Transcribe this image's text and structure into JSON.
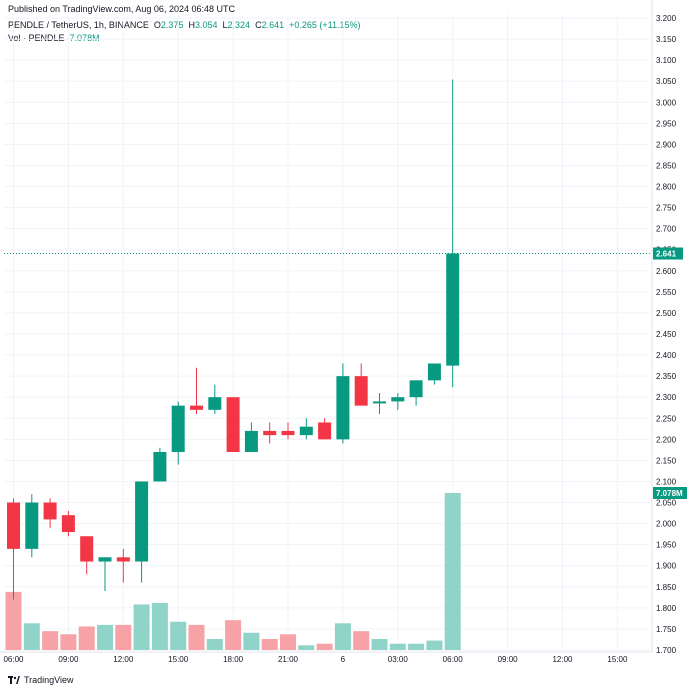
{
  "header": {
    "published": "Published on TradingView.com, Aug 06, 2024 06:48 UTC",
    "symbol": "PENDLE / TetherUS, 1h, BINANCE",
    "open_label": "O",
    "open": "2.375",
    "high_label": "H",
    "high": "3.054",
    "low_label": "L",
    "low": "2.324",
    "close_label": "C",
    "close": "2.641",
    "change": "+0.265 (+11.15%)",
    "vol_label": "Vol · PENDLE",
    "vol_value": "7.078M"
  },
  "footer": {
    "brand": "TradingView",
    "logo_icon": "tradingview-logo-icon"
  },
  "colors": {
    "up": "#089981",
    "down": "#f23645",
    "vol_up": "#8fd3c9",
    "vol_down": "#f6a2a6"
  },
  "chart_data": {
    "type": "candlestick",
    "ylim": [
      1.7,
      3.2
    ],
    "y_ticks": [
      "1.700",
      "1.750",
      "1.800",
      "1.850",
      "1.900",
      "1.950",
      "2.000",
      "2.050",
      "2.100",
      "2.150",
      "2.200",
      "2.250",
      "2.300",
      "2.350",
      "2.400",
      "2.450",
      "2.500",
      "2.550",
      "2.600",
      "2.650",
      "2.700",
      "2.750",
      "2.800",
      "2.850",
      "2.900",
      "2.950",
      "3.000",
      "3.050",
      "3.100",
      "3.150",
      "3.200"
    ],
    "x_ticks": [
      {
        "label": "06:00",
        "i": 0
      },
      {
        "label": "09:00",
        "i": 3
      },
      {
        "label": "12:00",
        "i": 6
      },
      {
        "label": "15:00",
        "i": 9
      },
      {
        "label": "18:00",
        "i": 12
      },
      {
        "label": "21:00",
        "i": 15
      },
      {
        "label": "6",
        "i": 18
      },
      {
        "label": "03:00",
        "i": 21
      },
      {
        "label": "06:00",
        "i": 24
      },
      {
        "label": "09:00",
        "i": 27
      },
      {
        "label": "12:00",
        "i": 30
      },
      {
        "label": "15:00",
        "i": 33
      }
    ],
    "last_price": "2.641",
    "last_volume": "7.078M",
    "candles": [
      {
        "o": 2.05,
        "h": 2.06,
        "l": 1.82,
        "c": 1.94,
        "v": 0.37
      },
      {
        "o": 1.94,
        "h": 2.07,
        "l": 1.92,
        "c": 2.05,
        "v": 0.17
      },
      {
        "o": 2.05,
        "h": 2.06,
        "l": 1.99,
        "c": 2.01,
        "v": 0.12
      },
      {
        "o": 2.02,
        "h": 2.03,
        "l": 1.97,
        "c": 1.98,
        "v": 0.1
      },
      {
        "o": 1.97,
        "h": 1.97,
        "l": 1.88,
        "c": 1.91,
        "v": 0.15
      },
      {
        "o": 1.91,
        "h": 1.92,
        "l": 1.84,
        "c": 1.92,
        "v": 0.16
      },
      {
        "o": 1.92,
        "h": 1.94,
        "l": 1.86,
        "c": 1.91,
        "v": 0.16
      },
      {
        "o": 1.91,
        "h": 2.1,
        "l": 1.86,
        "c": 2.1,
        "v": 0.29
      },
      {
        "o": 2.1,
        "h": 2.18,
        "l": 2.1,
        "c": 2.17,
        "v": 0.3
      },
      {
        "o": 2.17,
        "h": 2.29,
        "l": 2.14,
        "c": 2.28,
        "v": 0.18
      },
      {
        "o": 2.28,
        "h": 2.37,
        "l": 2.26,
        "c": 2.27,
        "v": 0.16
      },
      {
        "o": 2.27,
        "h": 2.33,
        "l": 2.26,
        "c": 2.3,
        "v": 0.07
      },
      {
        "o": 2.3,
        "h": 2.3,
        "l": 2.17,
        "c": 2.17,
        "v": 0.19
      },
      {
        "o": 2.17,
        "h": 2.24,
        "l": 2.17,
        "c": 2.22,
        "v": 0.11
      },
      {
        "o": 2.22,
        "h": 2.24,
        "l": 2.19,
        "c": 2.21,
        "v": 0.07
      },
      {
        "o": 2.22,
        "h": 2.24,
        "l": 2.2,
        "c": 2.21,
        "v": 0.1
      },
      {
        "o": 2.21,
        "h": 2.25,
        "l": 2.2,
        "c": 2.23,
        "v": 0.03
      },
      {
        "o": 2.24,
        "h": 2.25,
        "l": 2.2,
        "c": 2.2,
        "v": 0.04
      },
      {
        "o": 2.2,
        "h": 2.38,
        "l": 2.19,
        "c": 2.35,
        "v": 0.17
      },
      {
        "o": 2.35,
        "h": 2.38,
        "l": 2.28,
        "c": 2.28,
        "v": 0.12
      },
      {
        "o": 2.29,
        "h": 2.31,
        "l": 2.26,
        "c": 2.29,
        "v": 0.07
      },
      {
        "o": 2.29,
        "h": 2.31,
        "l": 2.27,
        "c": 2.3,
        "v": 0.04
      },
      {
        "o": 2.3,
        "h": 2.34,
        "l": 2.28,
        "c": 2.34,
        "v": 0.04
      },
      {
        "o": 2.34,
        "h": 2.38,
        "l": 2.33,
        "c": 2.38,
        "v": 0.06
      },
      {
        "o": 2.375,
        "h": 3.054,
        "l": 2.324,
        "c": 2.641,
        "v": 1.0
      }
    ]
  }
}
